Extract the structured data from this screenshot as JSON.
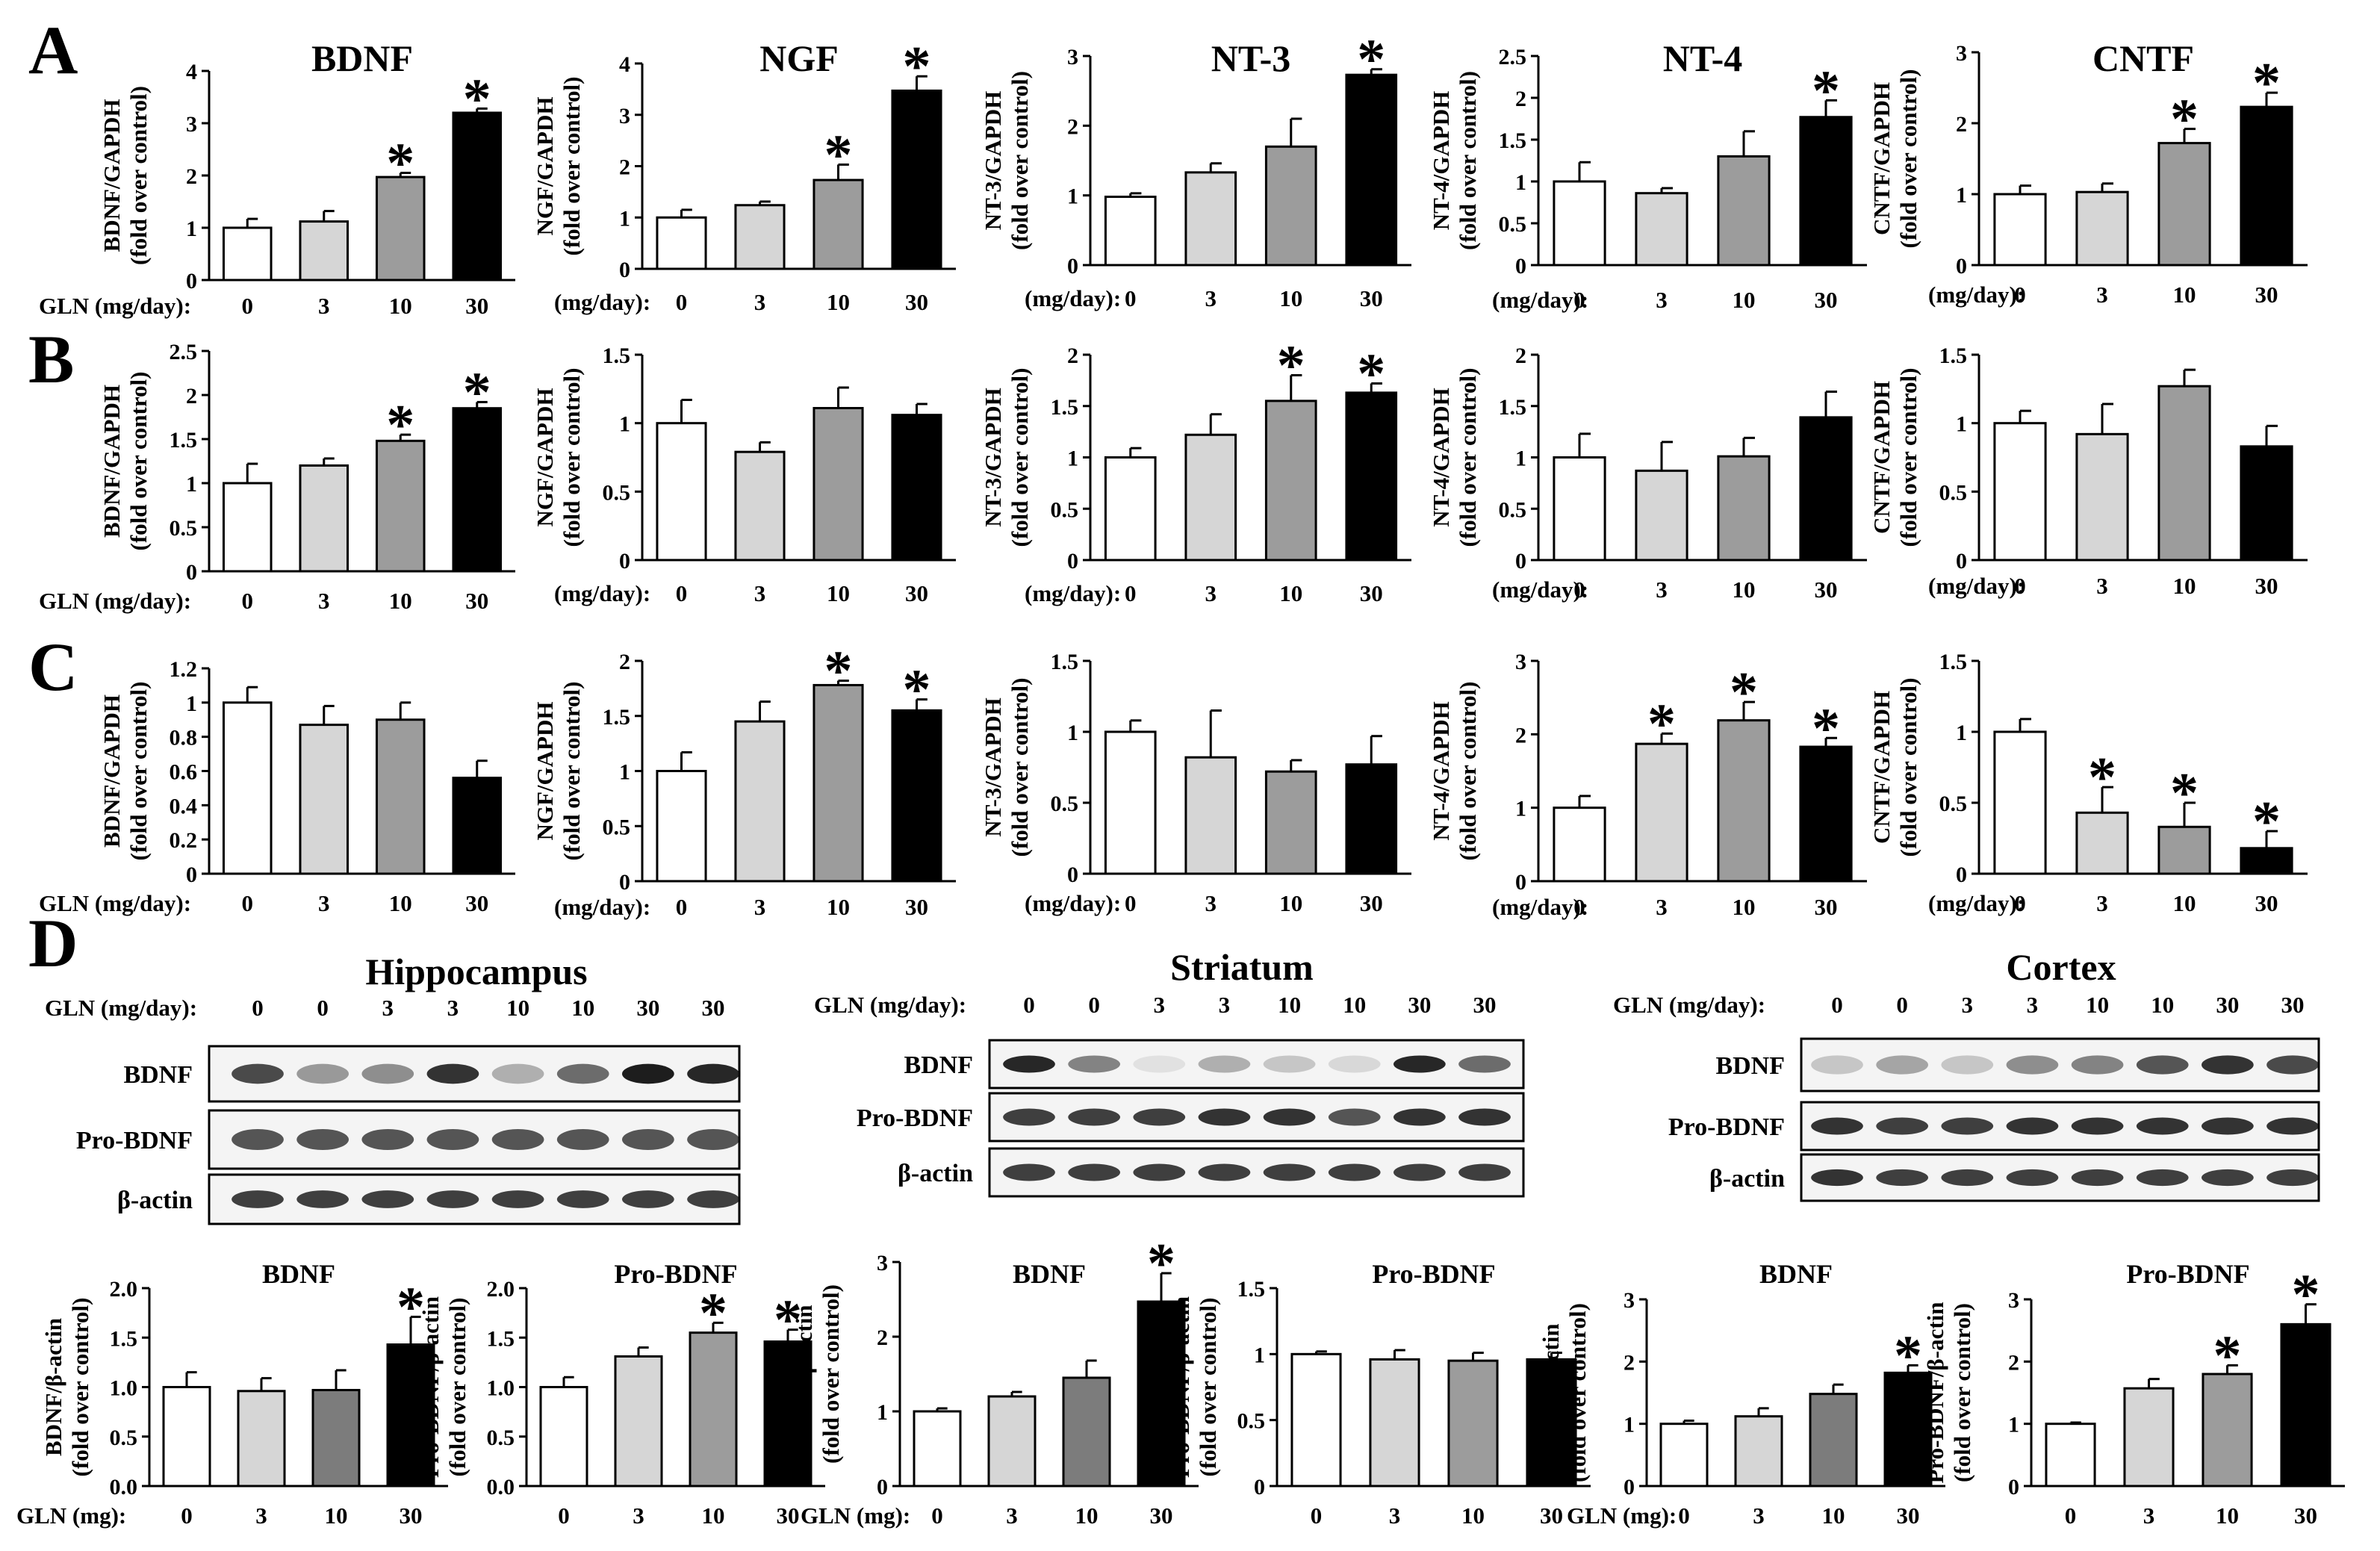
{
  "colors": {
    "dose_bars": [
      "#ffffff",
      "#d6d6d6",
      "#9c9c9c",
      "#000000"
    ],
    "bdnf_bar_d": "#7c7c7c",
    "axis": "#000000",
    "blot_background": "#f4f4f4",
    "band": "#111111"
  },
  "panel_letters": [
    "A",
    "B",
    "C",
    "D"
  ],
  "dose_axis": {
    "prefix_long": "GLN (mg/day):",
    "prefix_short": "(mg/day):",
    "prefix_mg": "GLN (mg):",
    "ticks": [
      "0",
      "3",
      "10",
      "30"
    ]
  },
  "significance_marker": "*",
  "chart_data": [
    {
      "id": "A1",
      "type": "bar",
      "title": "BDNF",
      "ylabel": [
        "BDNF/GAPDH",
        "(fold over control)"
      ],
      "ylim": [
        0,
        4
      ],
      "yticks": [
        "0",
        "1",
        "2",
        "3",
        "4"
      ],
      "categories": [
        "0",
        "3",
        "10",
        "30"
      ],
      "values": [
        1.0,
        1.12,
        1.97,
        3.2
      ],
      "errors": [
        0.17,
        0.2,
        0.08,
        0.08
      ],
      "significant": [
        false,
        false,
        true,
        true
      ],
      "xprefix": "GLN (mg/day):"
    },
    {
      "id": "A2",
      "type": "bar",
      "title": "NGF",
      "ylabel": [
        "NGF/GAPDH",
        "(fold over control)"
      ],
      "ylim": [
        0,
        4
      ],
      "yticks": [
        "0",
        "1",
        "2",
        "3",
        "4"
      ],
      "categories": [
        "0",
        "3",
        "10",
        "30"
      ],
      "values": [
        1.0,
        1.24,
        1.73,
        3.47
      ],
      "errors": [
        0.15,
        0.07,
        0.3,
        0.28
      ],
      "significant": [
        false,
        false,
        true,
        true
      ],
      "xprefix": "(mg/day):"
    },
    {
      "id": "A3",
      "type": "bar",
      "title": "NT-3",
      "ylabel": [
        "NT-3/GAPDH",
        "(fold over control)"
      ],
      "ylim": [
        0,
        3
      ],
      "yticks": [
        "0",
        "1",
        "2",
        "3"
      ],
      "categories": [
        "0",
        "3",
        "10",
        "30"
      ],
      "values": [
        0.98,
        1.33,
        1.7,
        2.73
      ],
      "errors": [
        0.05,
        0.13,
        0.4,
        0.08
      ],
      "significant": [
        false,
        false,
        false,
        true
      ],
      "xprefix": "(mg/day):"
    },
    {
      "id": "A4",
      "type": "bar",
      "title": "NT-4",
      "ylabel": [
        "NT-4/GAPDH",
        "(fold over control)"
      ],
      "ylim": [
        0,
        2.5
      ],
      "yticks": [
        "0",
        "0.5",
        "1",
        "1.5",
        "2",
        "2.5"
      ],
      "categories": [
        "0",
        "3",
        "10",
        "30"
      ],
      "values": [
        1.0,
        0.86,
        1.3,
        1.77
      ],
      "errors": [
        0.23,
        0.06,
        0.3,
        0.2
      ],
      "significant": [
        false,
        false,
        false,
        true
      ],
      "xprefix": "(mg/day):"
    },
    {
      "id": "A5",
      "type": "bar",
      "title": "CNTF",
      "ylabel": [
        "CNTF/GAPDH",
        "(fold over control)"
      ],
      "ylim": [
        0,
        3
      ],
      "yticks": [
        "0",
        "1",
        "2",
        "3"
      ],
      "categories": [
        "0",
        "3",
        "10",
        "30"
      ],
      "values": [
        1.0,
        1.03,
        1.72,
        2.23
      ],
      "errors": [
        0.12,
        0.12,
        0.2,
        0.2
      ],
      "significant": [
        false,
        false,
        true,
        true
      ],
      "xprefix": "(mg/day):"
    },
    {
      "id": "B1",
      "type": "bar",
      "title": "",
      "ylabel": [
        "BDNF/GAPDH",
        "(fold over control)"
      ],
      "ylim": [
        0,
        2.5
      ],
      "yticks": [
        "0",
        "0.5",
        "1",
        "1.5",
        "2",
        "2.5"
      ],
      "categories": [
        "0",
        "3",
        "10",
        "30"
      ],
      "values": [
        1.0,
        1.2,
        1.48,
        1.85
      ],
      "errors": [
        0.22,
        0.08,
        0.07,
        0.07
      ],
      "significant": [
        false,
        false,
        true,
        true
      ],
      "xprefix": "GLN (mg/day):"
    },
    {
      "id": "B2",
      "type": "bar",
      "title": "",
      "ylabel": [
        "NGF/GAPDH",
        "(fold over control)"
      ],
      "ylim": [
        0,
        1.5
      ],
      "yticks": [
        "0",
        "0.5",
        "1",
        "1.5"
      ],
      "categories": [
        "0",
        "3",
        "10",
        "30"
      ],
      "values": [
        1.0,
        0.79,
        1.11,
        1.06
      ],
      "errors": [
        0.17,
        0.07,
        0.15,
        0.08
      ],
      "significant": [
        false,
        false,
        false,
        false
      ],
      "xprefix": "(mg/day):"
    },
    {
      "id": "B3",
      "type": "bar",
      "title": "",
      "ylabel": [
        "NT-3/GAPDH",
        "(fold over control)"
      ],
      "ylim": [
        0,
        2
      ],
      "yticks": [
        "0",
        "0.5",
        "1",
        "1.5",
        "2"
      ],
      "categories": [
        "0",
        "3",
        "10",
        "30"
      ],
      "values": [
        1.0,
        1.22,
        1.55,
        1.63
      ],
      "errors": [
        0.09,
        0.2,
        0.25,
        0.09
      ],
      "significant": [
        false,
        false,
        true,
        true
      ],
      "xprefix": "(mg/day):"
    },
    {
      "id": "B4",
      "type": "bar",
      "title": "",
      "ylabel": [
        "NT-4/GAPDH",
        "(fold over control)"
      ],
      "ylim": [
        0,
        2
      ],
      "yticks": [
        "0",
        "0.5",
        "1",
        "1.5",
        "2"
      ],
      "categories": [
        "0",
        "3",
        "10",
        "30"
      ],
      "values": [
        1.0,
        0.87,
        1.01,
        1.39
      ],
      "errors": [
        0.23,
        0.28,
        0.18,
        0.25
      ],
      "significant": [
        false,
        false,
        false,
        false
      ],
      "xprefix": "(mg/day):"
    },
    {
      "id": "B5",
      "type": "bar",
      "title": "",
      "ylabel": [
        "CNTF/GAPDH",
        "(fold over control)"
      ],
      "ylim": [
        0,
        1.5
      ],
      "yticks": [
        "0",
        "0.5",
        "1",
        "1.5"
      ],
      "categories": [
        "0",
        "3",
        "10",
        "30"
      ],
      "values": [
        1.0,
        0.92,
        1.27,
        0.83
      ],
      "errors": [
        0.09,
        0.22,
        0.12,
        0.15
      ],
      "significant": [
        false,
        false,
        false,
        false
      ],
      "xprefix": "(mg/day):"
    },
    {
      "id": "C1",
      "type": "bar",
      "title": "",
      "ylabel": [
        "BDNF/GAPDH",
        "(fold over control)"
      ],
      "ylim": [
        0,
        1.2
      ],
      "yticks": [
        "0",
        "0.2",
        "0.4",
        "0.6",
        "0.8",
        "1",
        "1.2"
      ],
      "categories": [
        "0",
        "3",
        "10",
        "30"
      ],
      "values": [
        1.0,
        0.87,
        0.9,
        0.56
      ],
      "errors": [
        0.09,
        0.11,
        0.1,
        0.1
      ],
      "significant": [
        false,
        false,
        false,
        false
      ],
      "xprefix": "GLN (mg/day):"
    },
    {
      "id": "C2",
      "type": "bar",
      "title": "",
      "ylabel": [
        "NGF/GAPDH",
        "(fold over control)"
      ],
      "ylim": [
        0,
        2
      ],
      "yticks": [
        "0",
        "0.5",
        "1",
        "1.5",
        "2"
      ],
      "categories": [
        "0",
        "3",
        "10",
        "30"
      ],
      "values": [
        1.0,
        1.45,
        1.78,
        1.55
      ],
      "errors": [
        0.17,
        0.18,
        0.04,
        0.1
      ],
      "significant": [
        false,
        false,
        true,
        true
      ],
      "xprefix": "(mg/day):"
    },
    {
      "id": "C3",
      "type": "bar",
      "title": "",
      "ylabel": [
        "NT-3/GAPDH",
        "(fold over control)"
      ],
      "ylim": [
        0,
        1.5
      ],
      "yticks": [
        "0",
        "0.5",
        "1",
        "1.5"
      ],
      "categories": [
        "0",
        "3",
        "10",
        "30"
      ],
      "values": [
        1.0,
        0.82,
        0.72,
        0.77
      ],
      "errors": [
        0.08,
        0.33,
        0.08,
        0.2
      ],
      "significant": [
        false,
        false,
        false,
        false
      ],
      "xprefix": "(mg/day):"
    },
    {
      "id": "C4",
      "type": "bar",
      "title": "",
      "ylabel": [
        "NT-4/GAPDH",
        "(fold over control)"
      ],
      "ylim": [
        0,
        3
      ],
      "yticks": [
        "0",
        "1",
        "2",
        "3"
      ],
      "categories": [
        "0",
        "3",
        "10",
        "30"
      ],
      "values": [
        1.0,
        1.87,
        2.19,
        1.83
      ],
      "errors": [
        0.16,
        0.14,
        0.25,
        0.12
      ],
      "significant": [
        false,
        true,
        true,
        true
      ],
      "xprefix": "(mg/day):"
    },
    {
      "id": "C5",
      "type": "bar",
      "title": "",
      "ylabel": [
        "CNTF/GAPDH",
        "(fold over control)"
      ],
      "ylim": [
        0,
        1.5
      ],
      "yticks": [
        "0",
        "0.5",
        "1",
        "1.5"
      ],
      "categories": [
        "0",
        "3",
        "10",
        "30"
      ],
      "values": [
        1.0,
        0.43,
        0.33,
        0.18
      ],
      "errors": [
        0.09,
        0.18,
        0.17,
        0.12
      ],
      "significant": [
        false,
        true,
        true,
        true
      ],
      "xprefix": "(mg/day):"
    },
    {
      "id": "D1",
      "type": "bar",
      "title": "BDNF",
      "ylabel": [
        "BDNF/β-actin",
        "(fold over control)"
      ],
      "ylim": [
        0,
        2
      ],
      "yticks": [
        "0.0",
        "0.5",
        "1.0",
        "1.5",
        "2.0"
      ],
      "categories": [
        "0",
        "3",
        "10",
        "30"
      ],
      "values": [
        1.0,
        0.96,
        0.97,
        1.43
      ],
      "errors": [
        0.15,
        0.13,
        0.2,
        0.28
      ],
      "significant": [
        false,
        false,
        false,
        true
      ],
      "xprefix": "GLN (mg):"
    },
    {
      "id": "D2",
      "type": "bar",
      "title": "Pro-BDNF",
      "ylabel": [
        "Pro-BDNF/β-actin",
        "(fold over control)"
      ],
      "ylim": [
        0,
        2
      ],
      "yticks": [
        "0.0",
        "0.5",
        "1.0",
        "1.5",
        "2.0"
      ],
      "categories": [
        "0",
        "3",
        "10",
        "30"
      ],
      "values": [
        1.0,
        1.31,
        1.55,
        1.46
      ],
      "errors": [
        0.1,
        0.09,
        0.1,
        0.12
      ],
      "significant": [
        false,
        false,
        true,
        true
      ],
      "xprefix": ""
    },
    {
      "id": "D3",
      "type": "bar",
      "title": "BDNF",
      "ylabel": [
        "BDNF/β-actin",
        "(fold over control)"
      ],
      "ylim": [
        0,
        3
      ],
      "yticks": [
        "0",
        "1",
        "2",
        "3"
      ],
      "categories": [
        "0",
        "3",
        "10",
        "30"
      ],
      "values": [
        1.0,
        1.2,
        1.45,
        2.47
      ],
      "errors": [
        0.04,
        0.06,
        0.23,
        0.38
      ],
      "significant": [
        false,
        false,
        false,
        true
      ],
      "xprefix": "GLN (mg):"
    },
    {
      "id": "D4",
      "type": "bar",
      "title": "Pro-BDNF",
      "ylabel": [
        "Pro-BDNF/β-actin",
        "(fold over control)"
      ],
      "ylim": [
        0,
        1.5
      ],
      "yticks": [
        "0",
        "0.5",
        "1",
        "1.5"
      ],
      "categories": [
        "0",
        "3",
        "10",
        "30"
      ],
      "values": [
        1.0,
        0.96,
        0.95,
        0.96
      ],
      "errors": [
        0.02,
        0.07,
        0.06,
        0.05
      ],
      "significant": [
        false,
        false,
        false,
        false
      ],
      "xprefix": ""
    },
    {
      "id": "D5",
      "type": "bar",
      "title": "BDNF",
      "ylabel": [
        "BDNF/β-actin",
        "(fold over control)"
      ],
      "ylim": [
        0,
        3
      ],
      "yticks": [
        "0",
        "1",
        "2",
        "3"
      ],
      "categories": [
        "0",
        "3",
        "10",
        "30"
      ],
      "values": [
        1.0,
        1.12,
        1.48,
        1.82
      ],
      "errors": [
        0.05,
        0.13,
        0.15,
        0.12
      ],
      "significant": [
        false,
        false,
        false,
        true
      ],
      "xprefix": "GLN (mg):"
    },
    {
      "id": "D6",
      "type": "bar",
      "title": "Pro-BDNF",
      "ylabel": [
        "Pro-BDNF/β-actin",
        "(fold over control)"
      ],
      "ylim": [
        0,
        3
      ],
      "yticks": [
        "0",
        "1",
        "2",
        "3"
      ],
      "categories": [
        "0",
        "3",
        "10",
        "30"
      ],
      "values": [
        1.0,
        1.57,
        1.8,
        2.6
      ],
      "errors": [
        0.02,
        0.15,
        0.14,
        0.32
      ],
      "significant": [
        false,
        false,
        true,
        true
      ],
      "xprefix": ""
    }
  ],
  "western_blots": [
    {
      "region": "Hippocampus",
      "lane_header": "GLN (mg/day):",
      "lanes": [
        "0",
        "0",
        "3",
        "3",
        "10",
        "10",
        "30",
        "30"
      ],
      "rows": [
        {
          "label": "BDNF",
          "band_intensity": [
            0.75,
            0.4,
            0.45,
            0.85,
            0.3,
            0.6,
            0.95,
            0.9
          ]
        },
        {
          "label": "Pro-BDNF",
          "band_intensity": [
            0.7,
            0.7,
            0.7,
            0.7,
            0.7,
            0.7,
            0.7,
            0.7
          ]
        },
        {
          "label": "β-actin",
          "band_intensity": [
            0.8,
            0.8,
            0.8,
            0.8,
            0.8,
            0.8,
            0.8,
            0.8
          ]
        }
      ]
    },
    {
      "region": "Striatum",
      "lane_header": "GLN (mg/day):",
      "lanes": [
        "0",
        "0",
        "3",
        "3",
        "10",
        "10",
        "30",
        "30"
      ],
      "rows": [
        {
          "label": "BDNF",
          "band_intensity": [
            0.9,
            0.5,
            0.08,
            0.3,
            0.2,
            0.12,
            0.9,
            0.6
          ]
        },
        {
          "label": "Pro-BDNF",
          "band_intensity": [
            0.8,
            0.8,
            0.8,
            0.85,
            0.85,
            0.7,
            0.85,
            0.85
          ]
        },
        {
          "label": "β-actin",
          "band_intensity": [
            0.8,
            0.8,
            0.8,
            0.8,
            0.8,
            0.8,
            0.8,
            0.8
          ]
        }
      ]
    },
    {
      "region": "Cortex",
      "lane_header": "GLN (mg/day):",
      "lanes": [
        "0",
        "0",
        "3",
        "3",
        "10",
        "10",
        "30",
        "30"
      ],
      "rows": [
        {
          "label": "BDNF",
          "band_intensity": [
            0.2,
            0.35,
            0.2,
            0.45,
            0.5,
            0.7,
            0.85,
            0.75
          ]
        },
        {
          "label": "Pro-BDNF",
          "band_intensity": [
            0.85,
            0.8,
            0.8,
            0.85,
            0.85,
            0.85,
            0.85,
            0.85
          ]
        },
        {
          "label": "β-actin",
          "band_intensity": [
            0.85,
            0.8,
            0.8,
            0.8,
            0.8,
            0.8,
            0.8,
            0.8
          ]
        }
      ]
    }
  ]
}
